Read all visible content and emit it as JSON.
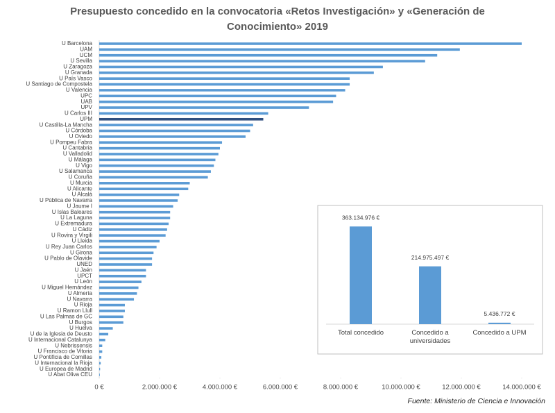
{
  "chart_data": [
    {
      "type": "hbar",
      "title": "Presupuesto concedido en la convocatoria «Retos Investigación» y «Generación de Conocimiento» 2019",
      "source": "Fuente: Ministerio de Ciencia e Innovación",
      "categories": [
        "U Barcelona",
        "UAM",
        "UCM",
        "U Sevilla",
        "U Zaragoza",
        "U Granada",
        "U País Vasco",
        "U Santiago de Compostela",
        "U Valencia",
        "UPC",
        "UAB",
        "UPV",
        "U Carlos III",
        "UPM",
        "U Castilla-La Mancha",
        "U Córdoba",
        "U Oviedo",
        "U Pompeu Fabra",
        "U Cantabria",
        "U Valladolid",
        "U Málaga",
        "U Vigo",
        "U Salamanca",
        "U Coruña",
        "U Murcia",
        "U Alicante",
        "U Alcalá",
        "U Pública de Navarra",
        "U Jaume I",
        "U Islas Baleares",
        "U La Laguna",
        "U Extremadura",
        "U Cádiz",
        "U Rovira y Virgili",
        "U Lleida",
        "U Rey Juan Carlos",
        "U Girona",
        "U Pablo de Olavide",
        "UNED",
        "U Jaén",
        "UPCT",
        "U León",
        "U Miguel Hernández",
        "U Almería",
        "U Navarra",
        "U Rioja",
        "U Ramon Llull",
        "U Las Palmas de GC",
        "U Burgos",
        "U Huelva",
        "U de la Iglesia de Deusto",
        "U Internacional Catalunya",
        "U Nebrissensis",
        "U Francisco de Vitoria",
        "U Pontificia de Comillas",
        "U Internacional la Rioja",
        "U Europea de Madrid",
        "U Abat Oliva CEU"
      ],
      "values": [
        14000000,
        11950000,
        11200000,
        10800000,
        9400000,
        9100000,
        8300000,
        8300000,
        8150000,
        7850000,
        7750000,
        6950000,
        5600000,
        5436772,
        5100000,
        5000000,
        4850000,
        4070000,
        4000000,
        3950000,
        3850000,
        3800000,
        3700000,
        3600000,
        3000000,
        2950000,
        2650000,
        2600000,
        2450000,
        2350000,
        2350000,
        2300000,
        2250000,
        2200000,
        2000000,
        1900000,
        1800000,
        1750000,
        1750000,
        1550000,
        1550000,
        1400000,
        1300000,
        1250000,
        1150000,
        850000,
        850000,
        800000,
        800000,
        450000,
        300000,
        200000,
        100000,
        100000,
        70000,
        50000,
        30000,
        20000
      ],
      "colors": [
        "#5b9bd5",
        "#5b9bd5",
        "#5b9bd5",
        "#5b9bd5",
        "#5b9bd5",
        "#5b9bd5",
        "#5b9bd5",
        "#5b9bd5",
        "#5b9bd5",
        "#5b9bd5",
        "#5b9bd5",
        "#5b9bd5",
        "#5b9bd5",
        "#2f4f7f",
        "#5b9bd5",
        "#5b9bd5",
        "#5b9bd5",
        "#5b9bd5",
        "#5b9bd5",
        "#5b9bd5",
        "#5b9bd5",
        "#5b9bd5",
        "#5b9bd5",
        "#5b9bd5",
        "#5b9bd5",
        "#5b9bd5",
        "#5b9bd5",
        "#5b9bd5",
        "#5b9bd5",
        "#5b9bd5",
        "#5b9bd5",
        "#5b9bd5",
        "#5b9bd5",
        "#5b9bd5",
        "#5b9bd5",
        "#5b9bd5",
        "#5b9bd5",
        "#5b9bd5",
        "#5b9bd5",
        "#5b9bd5",
        "#5b9bd5",
        "#5b9bd5",
        "#5b9bd5",
        "#5b9bd5",
        "#5b9bd5",
        "#5b9bd5",
        "#5b9bd5",
        "#5b9bd5",
        "#5b9bd5",
        "#5b9bd5",
        "#5b9bd5",
        "#5b9bd5",
        "#5b9bd5",
        "#5b9bd5",
        "#5b9bd5",
        "#5b9bd5",
        "#5b9bd5",
        "#5b9bd5"
      ],
      "xlim": [
        0,
        14000000
      ],
      "xticks": [
        {
          "value": 0,
          "label": "0 €"
        },
        {
          "value": 2000000,
          "label": "2.000.000 €"
        },
        {
          "value": 4000000,
          "label": "4.000.000 €"
        },
        {
          "value": 6000000,
          "label": "6.000.000 €"
        },
        {
          "value": 8000000,
          "label": "8.000.000 €"
        },
        {
          "value": 10000000,
          "label": "10.000.000 €"
        },
        {
          "value": 12000000,
          "label": "12.000.000 €"
        },
        {
          "value": 14000000,
          "label": "14.000.000 €"
        }
      ]
    },
    {
      "type": "bar",
      "categories": [
        "Total concedido",
        "Concedido a universidades",
        "Concedido a UPM"
      ],
      "values": [
        363134976,
        214975497,
        5436772
      ],
      "value_labels": [
        "363.134.976 €",
        "214.975.497 €",
        "5.436.772 €"
      ],
      "color": "#5b9bd5",
      "ylim": [
        0,
        400000000
      ]
    }
  ]
}
